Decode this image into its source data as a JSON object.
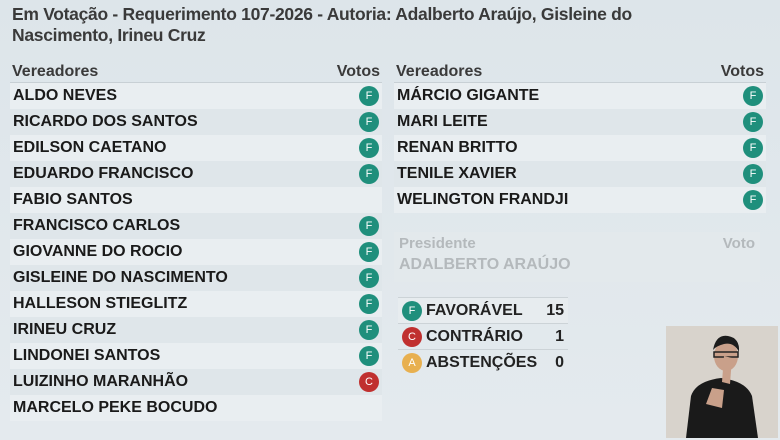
{
  "title": "Em Votação - Requerimento 107-2026 - Autoria:  Adalberto Araújo, Gisleine do Nascimento, Irineu Cruz",
  "headers": {
    "name": "Vereadores",
    "vote": "Votos"
  },
  "colors": {
    "F": "#1f8f7c",
    "C": "#c0302f",
    "A": "#e8b050"
  },
  "left": [
    {
      "name": "ALDO NEVES",
      "vote": "F"
    },
    {
      "name": "RICARDO DOS SANTOS",
      "vote": "F"
    },
    {
      "name": "EDILSON CAETANO",
      "vote": "F"
    },
    {
      "name": "EDUARDO FRANCISCO",
      "vote": "F"
    },
    {
      "name": "FABIO SANTOS",
      "vote": ""
    },
    {
      "name": "FRANCISCO CARLOS",
      "vote": "F"
    },
    {
      "name": "GIOVANNE DO ROCIO",
      "vote": "F"
    },
    {
      "name": "GISLEINE DO NASCIMENTO",
      "vote": "F"
    },
    {
      "name": "HALLESON STIEGLITZ",
      "vote": "F"
    },
    {
      "name": "IRINEU CRUZ",
      "vote": "F"
    },
    {
      "name": "LINDONEI SANTOS",
      "vote": "F"
    },
    {
      "name": "LUIZINHO MARANHÃO",
      "vote": "C"
    },
    {
      "name": "MARCELO PEKE BOCUDO",
      "vote": ""
    }
  ],
  "right": [
    {
      "name": "MÁRCIO GIGANTE",
      "vote": "F"
    },
    {
      "name": "MARI LEITE",
      "vote": "F"
    },
    {
      "name": "RENAN BRITTO",
      "vote": "F"
    },
    {
      "name": "TENILE XAVIER",
      "vote": "F"
    },
    {
      "name": "WELINGTON FRANDJI",
      "vote": "F"
    }
  ],
  "president": {
    "label": "Presidente",
    "vote_label": "Voto",
    "name": "ADALBERTO ARAÚJO"
  },
  "totals": [
    {
      "code": "F",
      "label": "FAVORÁVEL",
      "count": "15"
    },
    {
      "code": "C",
      "label": "CONTRÁRIO",
      "count": "1"
    },
    {
      "code": "A",
      "label": "ABSTENÇÕES",
      "count": "0"
    }
  ]
}
